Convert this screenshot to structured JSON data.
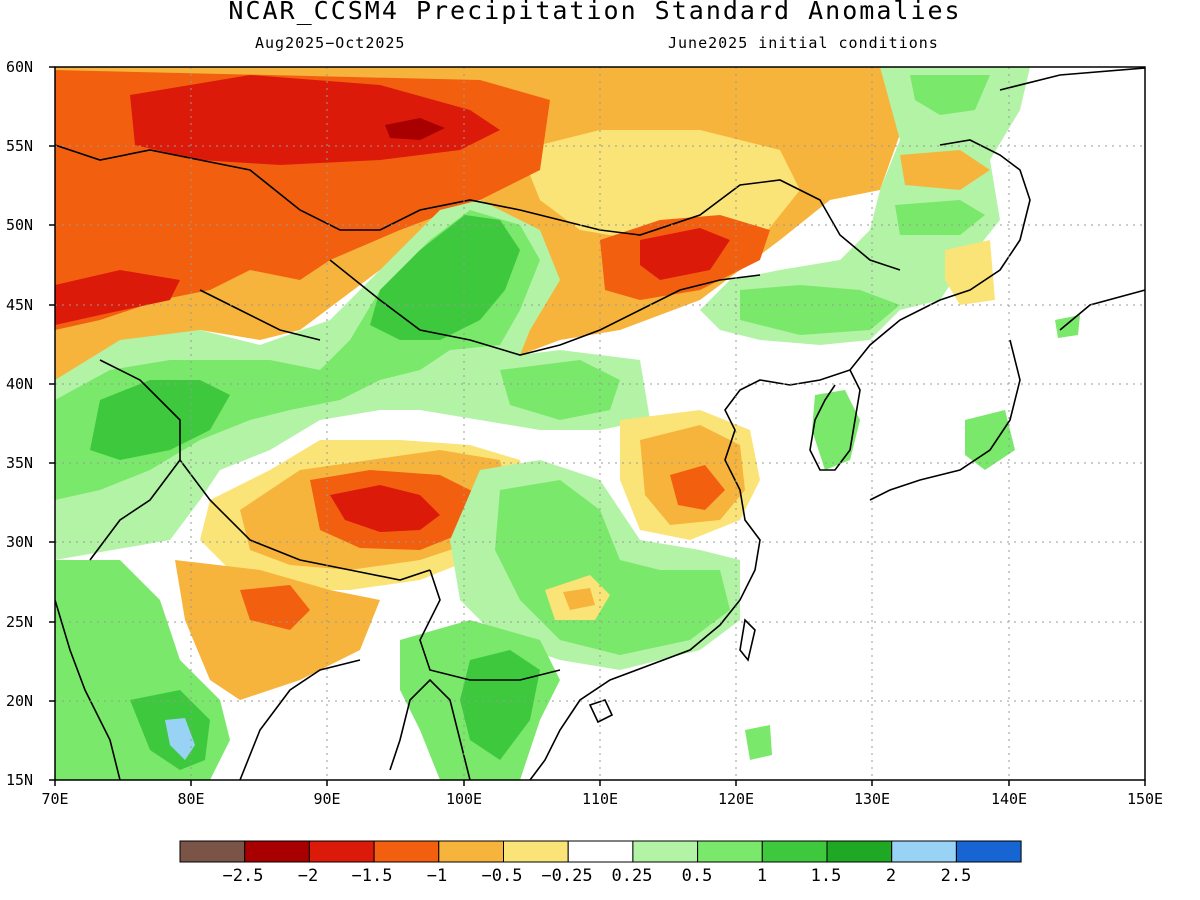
{
  "title": "NCAR_CCSM4 Precipitation Standard Anomalies",
  "period": "Aug2025-Oct2025",
  "init": "June2025 initial conditions",
  "lat_labels": [
    "60N",
    "55N",
    "50N",
    "45N",
    "40N",
    "35N",
    "30N",
    "25N",
    "20N",
    "15N"
  ],
  "lon_labels": [
    "70E",
    "80E",
    "90E",
    "100E",
    "110E",
    "120E",
    "130E",
    "140E",
    "150E"
  ],
  "colorbar": {
    "colors": [
      "#7a5446",
      "#a80000",
      "#dc1a0a",
      "#f2600f",
      "#f7b43c",
      "#fbe477",
      "#ffffff",
      "#b2f3a6",
      "#7ae86a",
      "#3ec83e",
      "#1fa824",
      "#98d2f5",
      "#1665d2"
    ],
    "labels": [
      "-2.5",
      "-2",
      "-1.5",
      "-1",
      "-0.5",
      "-0.25",
      "0.25",
      "0.5",
      "1",
      "1.5",
      "2",
      "2.5"
    ]
  },
  "legend_colors": {
    "strong_dry": "#dc1a0a",
    "dry": "#f2600f",
    "mild_dry": "#f7b43c",
    "slight_dry": "#fbe477",
    "slight_wet": "#b2f3a6",
    "wet": "#7ae86a",
    "moist": "#3ec83e",
    "very_wet": "#1fa824",
    "extreme_wet": "#98d2f5",
    "darkest_dry": "#a80000"
  }
}
